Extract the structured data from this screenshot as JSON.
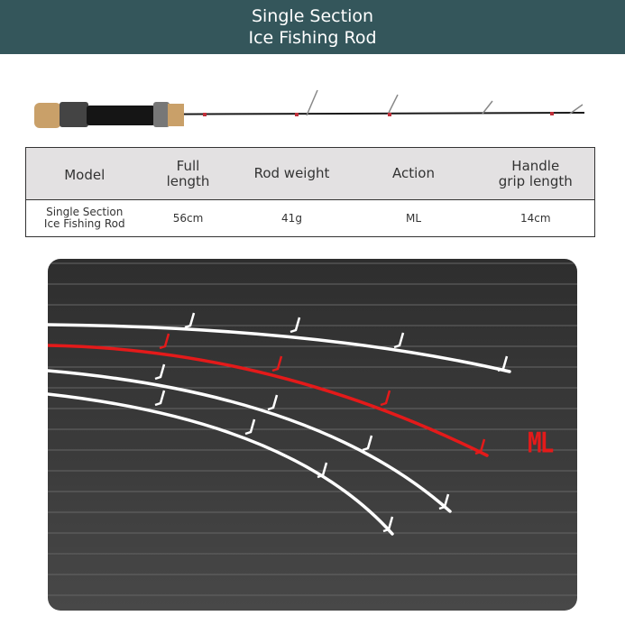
{
  "header": {
    "line1": "Single Section",
    "line2": "Ice Fishing Rod"
  },
  "table": {
    "headers": [
      [
        "Model",
        ""
      ],
      [
        "Full",
        "length"
      ],
      [
        "Rod weight",
        ""
      ],
      [
        "Action",
        ""
      ],
      [
        "Handle",
        "grip length"
      ]
    ],
    "row": {
      "model_line1": "Single Section",
      "model_line2": "Ice Fishing Rod",
      "full_length": "56cm",
      "rod_weight": "41g",
      "action": "ML",
      "handle_grip_length": "14cm"
    }
  },
  "action_chart": {
    "highlight_label": "ML",
    "highlight_color": "#e41a1a",
    "curve_color": "#ffffff"
  },
  "colors": {
    "header_bg": "#34565b",
    "table_header_bg": "#e3e1e2"
  }
}
